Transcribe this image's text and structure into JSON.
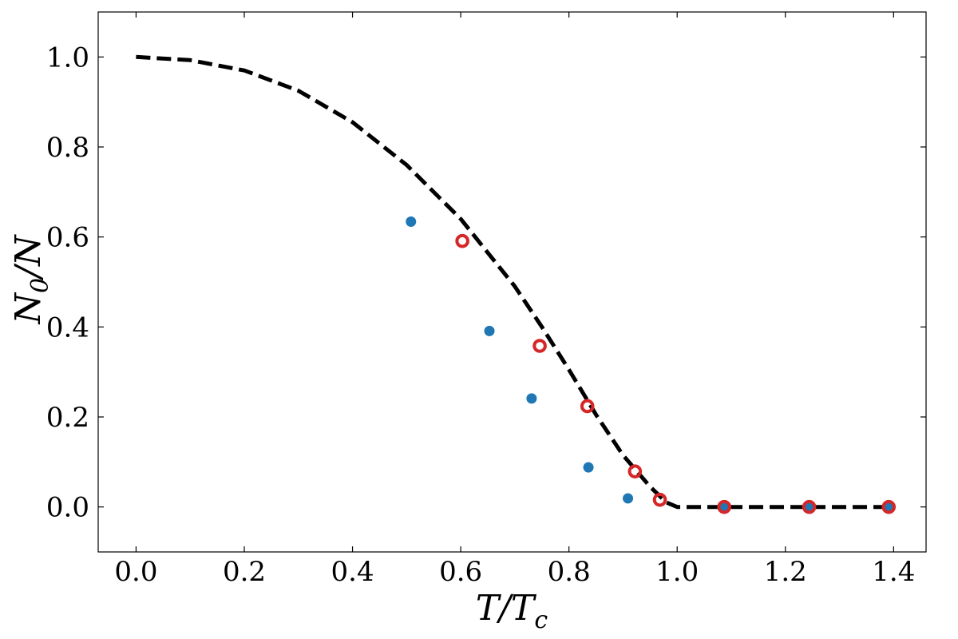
{
  "chart_data": {
    "type": "scatter",
    "xlabel": {
      "main": "T/T",
      "sub": "c"
    },
    "ylabel": {
      "main": "N",
      "sub": "0",
      "tail": "/N"
    },
    "xlim": [
      -0.07,
      1.46
    ],
    "ylim": [
      -0.1,
      1.1
    ],
    "xticks": [
      0.0,
      0.2,
      0.4,
      0.6,
      0.8,
      1.0,
      1.2,
      1.4
    ],
    "yticks": [
      0.0,
      0.2,
      0.4,
      0.6,
      0.8,
      1.0
    ],
    "xtick_labels": [
      "0.0",
      "0.2",
      "0.4",
      "0.6",
      "0.8",
      "1.0",
      "1.2",
      "1.4"
    ],
    "ytick_labels": [
      "0.0",
      "0.2",
      "0.4",
      "0.6",
      "0.8",
      "1.0"
    ],
    "grid": false,
    "series": [
      {
        "style": "dashed-line",
        "color": "#000000",
        "x": [
          0.0,
          0.1,
          0.2,
          0.3,
          0.4,
          0.5,
          0.6,
          0.7,
          0.75,
          0.8,
          0.85,
          0.9,
          0.95,
          0.98,
          1.0,
          1.05,
          1.2,
          1.4
        ],
        "y": [
          1.0,
          0.993,
          0.97,
          0.925,
          0.855,
          0.76,
          0.64,
          0.49,
          0.4,
          0.305,
          0.205,
          0.115,
          0.045,
          0.01,
          0.0,
          0.0,
          0.0,
          0.0
        ]
      },
      {
        "style": "filled-circle",
        "color": "#1f77b4",
        "x": [
          0.508,
          0.653,
          0.731,
          0.836,
          0.909,
          1.087,
          1.244,
          1.391
        ],
        "y": [
          0.634,
          0.391,
          0.241,
          0.088,
          0.019,
          0.0,
          0.0,
          0.0
        ]
      },
      {
        "style": "open-circle",
        "color": "#d62728",
        "x": [
          0.603,
          0.746,
          0.834,
          0.922,
          0.968,
          1.087,
          1.244,
          1.391
        ],
        "y": [
          0.591,
          0.358,
          0.224,
          0.079,
          0.016,
          0.0,
          0.0,
          0.0
        ]
      }
    ]
  }
}
